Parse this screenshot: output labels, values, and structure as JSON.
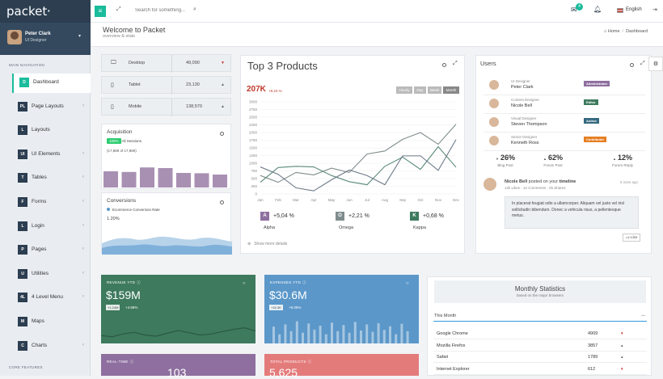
{
  "app": {
    "logo": "packet"
  },
  "profile": {
    "name": "Peter Clark",
    "role": "UI Designer"
  },
  "nav": {
    "heading": "MAIN NAVIGATION",
    "items": [
      {
        "abbr": "D",
        "label": "Dashboard",
        "chevron": false
      },
      {
        "abbr": "PL",
        "label": "Page Layouts",
        "chevron": true
      },
      {
        "abbr": "L",
        "label": "Layouts",
        "chevron": false
      },
      {
        "abbr": "UI",
        "label": "UI Elements",
        "chevron": true
      },
      {
        "abbr": "T",
        "label": "Tables",
        "chevron": true
      },
      {
        "abbr": "F",
        "label": "Forms",
        "chevron": true
      },
      {
        "abbr": "L",
        "label": "Login",
        "chevron": true
      },
      {
        "abbr": "P",
        "label": "Pages",
        "chevron": true
      },
      {
        "abbr": "U",
        "label": "Utilities",
        "chevron": true
      },
      {
        "abbr": "4L",
        "label": "4 Level Menu",
        "chevron": true
      },
      {
        "abbr": "M",
        "label": "Maps",
        "chevron": false
      },
      {
        "abbr": "C",
        "label": "Charts",
        "chevron": true
      }
    ],
    "footer_heading": "CORE FEATURES"
  },
  "topbar": {
    "search_placeholder": "Search for something...",
    "mail_count": "4",
    "language": "English"
  },
  "header": {
    "title": "Welcome to Packet",
    "subtitle": "overview & stats",
    "breadcrumb": [
      "Home",
      "Dashboard"
    ]
  },
  "devices": [
    {
      "name": "Desktop",
      "value": "49,090",
      "trend": "down",
      "icon": "desktop-icon"
    },
    {
      "name": "Tablet",
      "value": "23,130",
      "trend": "up",
      "icon": "tablet-icon"
    },
    {
      "name": "Mobile",
      "value": "138,570",
      "trend": "up",
      "icon": "mobile-icon"
    }
  ],
  "acquisition": {
    "title": "Acquisition",
    "badge": "100%",
    "badge_label": "All Sessions",
    "sub": "(17,869 of 17,869)",
    "bars": [
      0.5,
      0.48,
      0.62,
      0.6,
      0.45,
      0.44,
      0.4
    ]
  },
  "conversions": {
    "title": "Conversions",
    "legend": "Ecommerce Conversion Rate",
    "rate": "1.20%"
  },
  "products": {
    "title": "Top 3 Products",
    "value": "207K",
    "change": "+8.24 %",
    "ranges": [
      "Hourly",
      "Day",
      "Week",
      "Month"
    ],
    "active_range": "Month",
    "stats": [
      {
        "letter": "A",
        "value": "+5,04 %",
        "name": "Alpha",
        "color": "#8e6f9f"
      },
      {
        "letter": "O",
        "value": "+2,21 %",
        "name": "Omega",
        "color": "#7f8c8d"
      },
      {
        "letter": "K",
        "value": "+0,68 %",
        "name": "Kappa",
        "color": "#3e7a5e"
      }
    ],
    "show_more": "Show more details"
  },
  "chart_data": {
    "type": "line",
    "categories": [
      "Jan",
      "Feb",
      "Mar",
      "Apr",
      "May",
      "Jun",
      "Jul",
      "Aug",
      "Sep",
      "Oct",
      "Nov",
      "Dec"
    ],
    "yticks": [
      0,
      250,
      500,
      750,
      1000,
      1250,
      1500,
      1750,
      2000,
      2250,
      2500,
      2750,
      3000
    ],
    "ylim": [
      0,
      3000
    ],
    "series": [
      {
        "values": [
          600,
          380,
          700,
          620,
          840,
          700,
          1300,
          1400,
          1780,
          2000,
          1620,
          2270
        ],
        "color": "#7f8c8d"
      },
      {
        "values": [
          380,
          860,
          900,
          880,
          600,
          400,
          300,
          900,
          1200,
          800,
          1540,
          870
        ],
        "color": "#5a8a7a"
      },
      {
        "values": [
          880,
          640,
          200,
          100,
          460,
          780,
          600,
          300,
          1240,
          1240,
          770,
          1770
        ],
        "color": "#6c7a89"
      }
    ]
  },
  "users": {
    "title": "Users",
    "list": [
      {
        "role": "UI Designer",
        "name": "Peter Clark",
        "tag": "Administrator",
        "tag_color": "#8e6f9f"
      },
      {
        "role": "Content Designer",
        "name": "Nicole Bell",
        "tag": "Editor",
        "tag_color": "#3e7a5e"
      },
      {
        "role": "Visual Designer",
        "name": "Steven Thompson",
        "tag": "Author",
        "tag_color": "#34697f"
      },
      {
        "role": "Senior Designer",
        "name": "Kenneth Ross",
        "tag": "Contributor",
        "tag_color": "#e67e22"
      }
    ],
    "stats": [
      {
        "value": "26%",
        "label": "Blog Post",
        "trend": "down"
      },
      {
        "value": "62%",
        "label": "Forum Post",
        "trend": "up"
      },
      {
        "value": "12%",
        "label": "Forum Reply",
        "trend": "up"
      }
    ],
    "timeline": {
      "author": "Nicole Bell",
      "action": "posted on your",
      "target": "timeline",
      "time": "5 mins ago",
      "meta": "12k Likes - 12 Comments - 25 Shares",
      "text": "In placerat feugiat odio a ullamcorper. Aliquam vel justo vel nisl sollicitudin bibendum. Donec a vehicula risus, a pellentesque metus.",
      "like": "Like"
    }
  },
  "tiles": [
    {
      "title": "REVENUE YTD",
      "value": "$159M",
      "pill": "+1,24M",
      "sub": "+4.68%",
      "color": "#3e7a5e",
      "bars": [
        0.28,
        0.22,
        0.35,
        0.42,
        0.3,
        0.25,
        0.38,
        0.5,
        0.4,
        0.3,
        0.35,
        0.45,
        0.55,
        0.62,
        0.48
      ]
    },
    {
      "title": "EXPENSES YTD",
      "value": "$30.6M",
      "pill": "+15,3K",
      "sub": "+6.05%",
      "color": "#5b97c9",
      "bars": [
        0.55,
        0.3,
        0.62,
        0.4,
        0.72,
        0.35,
        0.65,
        0.45,
        0.58,
        0.3,
        0.68,
        0.4,
        0.6,
        0.35,
        0.7,
        0.42,
        0.62,
        0.38,
        0.66,
        0.44,
        0.56,
        0.3,
        0.64,
        0.4
      ]
    },
    {
      "title": "REAL-TIME",
      "value": "103",
      "color": "#8e6f9f"
    },
    {
      "title": "TOTAL PRODUCTS",
      "value": "5,625",
      "color": "#e47b7b"
    }
  ],
  "monthly": {
    "title": "Monthly Statistics",
    "subtitle": "based on the major browsers",
    "period": "This Month",
    "browsers": [
      {
        "name": "Google Chrome",
        "value": "4909",
        "trend": "down"
      },
      {
        "name": "Mozilla Firefox",
        "value": "3857",
        "trend": "up"
      },
      {
        "name": "Safari",
        "value": "1789",
        "trend": "up"
      },
      {
        "name": "Internet Explorer",
        "value": "612",
        "trend": "down"
      }
    ]
  }
}
